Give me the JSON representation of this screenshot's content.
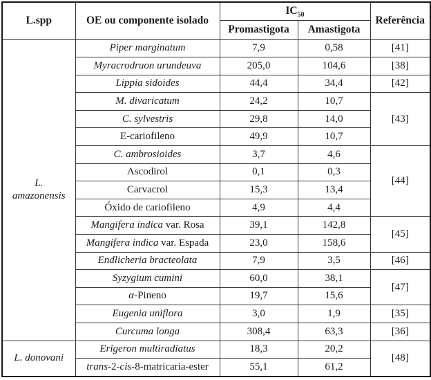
{
  "table": {
    "header": {
      "species": "L.spp",
      "component": "OE ou componente isolado",
      "ic50_base": "IC",
      "ic50_sub": "50",
      "promastigota": "Promastigota",
      "amastigota": "Amastigota",
      "reference": "Referência"
    },
    "rows": [
      {
        "species": {
          "lines": [
            "L.",
            "amazonensis"
          ],
          "italic": true,
          "rowspan": 17
        },
        "component": [
          {
            "t": "Piper marginatum",
            "i": true
          }
        ],
        "promastigota": "7,9",
        "amastigota": "0,58",
        "reference": {
          "label": "[41]",
          "rowspan": 1
        }
      },
      {
        "component": [
          {
            "t": "Myracrodruon urundeuva",
            "i": true
          }
        ],
        "promastigota": "205,0",
        "amastigota": "104,6",
        "reference": {
          "label": "[38]",
          "rowspan": 1
        }
      },
      {
        "component": [
          {
            "t": "Lippia sidoides",
            "i": true
          }
        ],
        "promastigota": "44,4",
        "amastigota": "34,4",
        "reference": {
          "label": "[42]",
          "rowspan": 1
        }
      },
      {
        "component": [
          {
            "t": "M. divaricatum",
            "i": true
          }
        ],
        "promastigota": "24,2",
        "amastigota": "10,7",
        "reference": {
          "label": "[43]",
          "rowspan": 3
        }
      },
      {
        "component": [
          {
            "t": "C. sylvestris",
            "i": true
          }
        ],
        "promastigota": "29,8",
        "amastigota": "14,0"
      },
      {
        "component": [
          {
            "t": "E-cariofileno",
            "i": false
          }
        ],
        "promastigota": "49,9",
        "amastigota": "10,7"
      },
      {
        "component": [
          {
            "t": "C. ambrosioides",
            "i": true
          }
        ],
        "promastigota": "3,7",
        "amastigota": "4,6",
        "reference": {
          "label": "[44]",
          "rowspan": 4
        }
      },
      {
        "component": [
          {
            "t": "Ascodirol",
            "i": false
          }
        ],
        "promastigota": "0,1",
        "amastigota": "0,3"
      },
      {
        "component": [
          {
            "t": "Carvacrol",
            "i": false
          }
        ],
        "promastigota": "15,3",
        "amastigota": "13,4"
      },
      {
        "component": [
          {
            "t": "Óxido de cariofileno",
            "i": false
          }
        ],
        "promastigota": "4,9",
        "amastigota": "4,4"
      },
      {
        "component": [
          {
            "t": "Mangifera indica",
            "i": true
          },
          {
            "t": " var. Rosa",
            "i": false
          }
        ],
        "promastigota": "39,1",
        "amastigota": "142,8",
        "reference": {
          "label": "[45]",
          "rowspan": 2
        }
      },
      {
        "component": [
          {
            "t": "Mangifera indica",
            "i": true
          },
          {
            "t": " var. Espada",
            "i": false
          }
        ],
        "promastigota": "23,0",
        "amastigota": "158,6"
      },
      {
        "component": [
          {
            "t": "Endlicheria bracteolata",
            "i": true
          }
        ],
        "promastigota": "7,9",
        "amastigota": "3,5",
        "reference": {
          "label": "[46]",
          "rowspan": 1
        }
      },
      {
        "component": [
          {
            "t": "Syzygium cumini",
            "i": true
          }
        ],
        "promastigota": "60,0",
        "amastigota": "38,1",
        "reference": {
          "label": "[47]",
          "rowspan": 2
        }
      },
      {
        "component": [
          {
            "t": "α",
            "i": true
          },
          {
            "t": "-Pineno",
            "i": false
          }
        ],
        "promastigota": "19,7",
        "amastigota": "15,6"
      },
      {
        "component": [
          {
            "t": "Eugenia uniflora",
            "i": true
          }
        ],
        "promastigota": "3,0",
        "amastigota": "1,9",
        "reference": {
          "label": "[35]",
          "rowspan": 1
        }
      },
      {
        "component": [
          {
            "t": "Curcuma longa",
            "i": true
          }
        ],
        "promastigota": "308,4",
        "amastigota": "63,3",
        "reference": {
          "label": "[36]",
          "rowspan": 1
        }
      },
      {
        "species": {
          "lines": [
            "L. donovani"
          ],
          "italic": true,
          "rowspan": 2
        },
        "component": [
          {
            "t": "Erigeron multiradiatus",
            "i": true
          }
        ],
        "promastigota": "18,3",
        "amastigota": "20,2",
        "reference": {
          "label": "[48]",
          "rowspan": 2
        }
      },
      {
        "component": [
          {
            "t": "trans",
            "i": true
          },
          {
            "t": "-2-",
            "i": false
          },
          {
            "t": "cis",
            "i": true
          },
          {
            "t": "-8-matricaria-ester",
            "i": false
          }
        ],
        "promastigota": "55,1",
        "amastigota": "61,2"
      }
    ]
  },
  "colors": {
    "background": "#ffffff",
    "text": "#1c1c1c",
    "border_outer": "#161616",
    "border_inner": "#343434"
  }
}
